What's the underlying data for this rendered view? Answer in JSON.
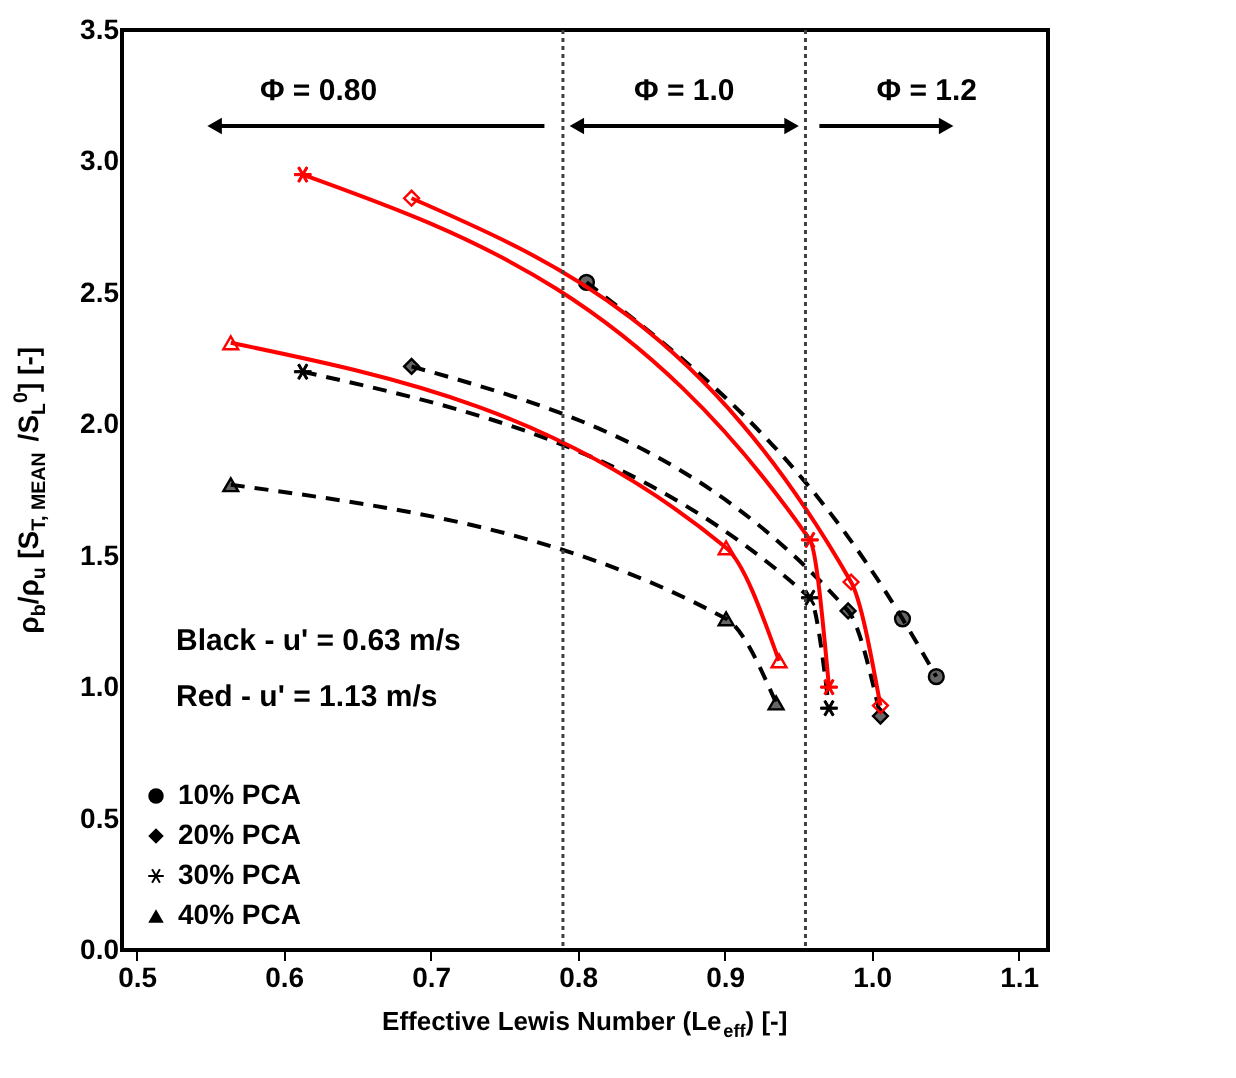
{
  "chart_data": {
    "type": "line",
    "xlabel": "Effective Lewis Number (Le$_{eff}$) [-]",
    "ylabel": "ρ$_{b}$/ρ$_{u}$ [S$_{T, MEAN}$ /S$_{L}$$^{0}$] [-]",
    "xlim": [
      0.49,
      1.12
    ],
    "ylim": [
      0,
      3.5
    ],
    "xticks": [
      0.5,
      0.6,
      0.7,
      0.8,
      0.9,
      {
        "value": 1,
        "label": "1.0"
      },
      1.1
    ],
    "yticks": [
      {
        "value": 0,
        "label": "0.0"
      },
      0.5,
      {
        "value": 1,
        "label": "1.0"
      },
      1.5,
      {
        "value": 2,
        "label": "2.0"
      },
      2.5,
      {
        "value": 3,
        "label": "3.0"
      },
      3.5
    ],
    "grid": false,
    "legend": "bottom left",
    "series": [
      {
        "name": "10% PCA",
        "color": "#000000",
        "marker": "circle",
        "line_style": "dashed",
        "x": [
          0.806,
          1.021,
          1.044
        ],
        "values": [
          2.54,
          1.26,
          1.04
        ]
      },
      {
        "name": "20% PCA",
        "color": "#000000",
        "marker": "diamond",
        "line_style": "dashed",
        "x": [
          0.687,
          0.984,
          1.006
        ],
        "values": [
          2.22,
          1.29,
          0.89
        ]
      },
      {
        "name": "30% PCA",
        "color": "#000000",
        "marker": "cross",
        "line_style": "dashed",
        "x": [
          0.613,
          0.958,
          0.971
        ],
        "values": [
          2.2,
          1.34,
          0.92
        ]
      },
      {
        "name": "40% PCA",
        "color": "#000000",
        "marker": "triangle",
        "line_style": "dashed",
        "x": [
          0.564,
          0.901,
          0.935
        ],
        "values": [
          1.77,
          1.26,
          0.94
        ]
      },
      {
        "color": "#ff0000",
        "marker": "diamond",
        "line_style": "solid",
        "x": [
          0.687,
          0.986,
          1.006
        ],
        "values": [
          2.86,
          1.4,
          0.93
        ]
      },
      {
        "color": "#ff0000",
        "marker": "cross",
        "line_style": "solid",
        "x": [
          0.613,
          0.958,
          0.971
        ],
        "values": [
          2.95,
          1.56,
          1.0
        ]
      },
      {
        "color": "#ff0000",
        "marker": "triangle",
        "line_style": "solid",
        "x": [
          0.564,
          0.901,
          0.937
        ],
        "values": [
          2.31,
          1.53,
          1.1
        ]
      }
    ],
    "ref_lines": [
      {
        "axis": "x",
        "value": 0.79,
        "color": "#404040",
        "line_style": "dotted"
      },
      {
        "axis": "x",
        "value": 0.955,
        "color": "#404040",
        "line_style": "dotted"
      }
    ],
    "annotations": [
      "Φ = 0.80",
      "Φ = 1.0",
      "Φ = 1.2",
      "Black - u' = 0.63 m/s",
      "Red - u' = 1.13 m/s"
    ]
  }
}
